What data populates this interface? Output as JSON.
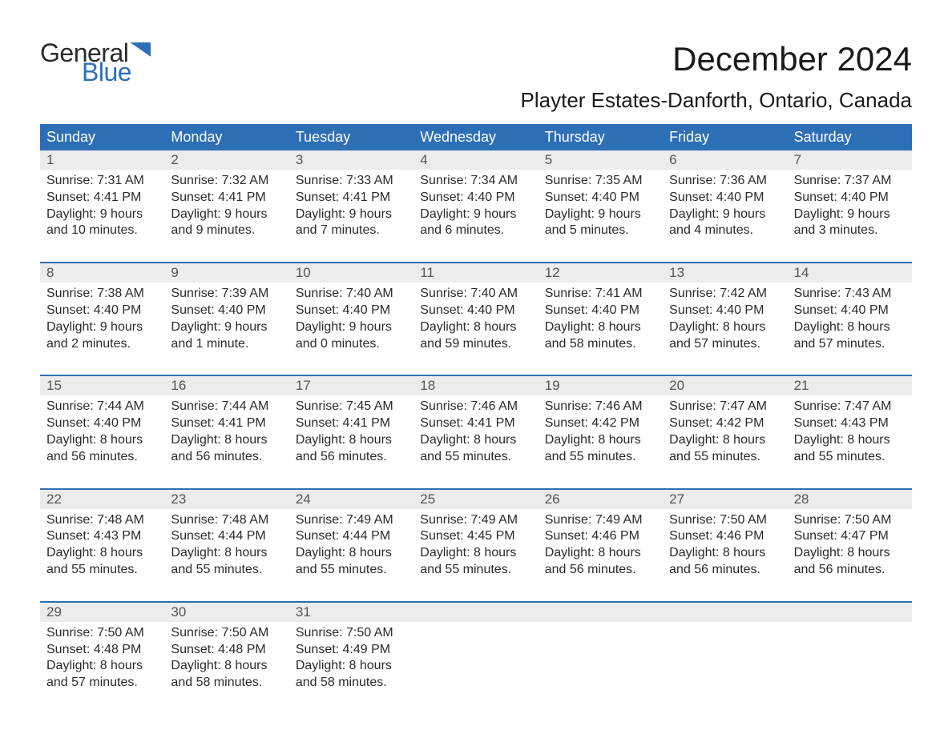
{
  "logo": {
    "text1": "General",
    "text2": "Blue"
  },
  "title": "December 2024",
  "subtitle": "Playter Estates-Danforth, Ontario, Canada",
  "colors": {
    "header_bg": "#2d6fb5",
    "header_text": "#ffffff",
    "daynum_bg": "#ececec",
    "daynum_text": "#555555",
    "body_text": "#2b2b2b",
    "week_border": "#2d6fb5",
    "page_bg": "#ffffff"
  },
  "typography": {
    "title_fontsize": 42,
    "subtitle_fontsize": 26,
    "weekday_fontsize": 18,
    "daynum_fontsize": 17,
    "cell_fontsize": 16,
    "logo_fontsize": 32
  },
  "weekdays": [
    "Sunday",
    "Monday",
    "Tuesday",
    "Wednesday",
    "Thursday",
    "Friday",
    "Saturday"
  ],
  "weeks": [
    [
      {
        "num": "1",
        "sunrise": "7:31 AM",
        "sunset": "4:41 PM",
        "daylight": "9 hours and 10 minutes."
      },
      {
        "num": "2",
        "sunrise": "7:32 AM",
        "sunset": "4:41 PM",
        "daylight": "9 hours and 9 minutes."
      },
      {
        "num": "3",
        "sunrise": "7:33 AM",
        "sunset": "4:41 PM",
        "daylight": "9 hours and 7 minutes."
      },
      {
        "num": "4",
        "sunrise": "7:34 AM",
        "sunset": "4:40 PM",
        "daylight": "9 hours and 6 minutes."
      },
      {
        "num": "5",
        "sunrise": "7:35 AM",
        "sunset": "4:40 PM",
        "daylight": "9 hours and 5 minutes."
      },
      {
        "num": "6",
        "sunrise": "7:36 AM",
        "sunset": "4:40 PM",
        "daylight": "9 hours and 4 minutes."
      },
      {
        "num": "7",
        "sunrise": "7:37 AM",
        "sunset": "4:40 PM",
        "daylight": "9 hours and 3 minutes."
      }
    ],
    [
      {
        "num": "8",
        "sunrise": "7:38 AM",
        "sunset": "4:40 PM",
        "daylight": "9 hours and 2 minutes."
      },
      {
        "num": "9",
        "sunrise": "7:39 AM",
        "sunset": "4:40 PM",
        "daylight": "9 hours and 1 minute."
      },
      {
        "num": "10",
        "sunrise": "7:40 AM",
        "sunset": "4:40 PM",
        "daylight": "9 hours and 0 minutes."
      },
      {
        "num": "11",
        "sunrise": "7:40 AM",
        "sunset": "4:40 PM",
        "daylight": "8 hours and 59 minutes."
      },
      {
        "num": "12",
        "sunrise": "7:41 AM",
        "sunset": "4:40 PM",
        "daylight": "8 hours and 58 minutes."
      },
      {
        "num": "13",
        "sunrise": "7:42 AM",
        "sunset": "4:40 PM",
        "daylight": "8 hours and 57 minutes."
      },
      {
        "num": "14",
        "sunrise": "7:43 AM",
        "sunset": "4:40 PM",
        "daylight": "8 hours and 57 minutes."
      }
    ],
    [
      {
        "num": "15",
        "sunrise": "7:44 AM",
        "sunset": "4:40 PM",
        "daylight": "8 hours and 56 minutes."
      },
      {
        "num": "16",
        "sunrise": "7:44 AM",
        "sunset": "4:41 PM",
        "daylight": "8 hours and 56 minutes."
      },
      {
        "num": "17",
        "sunrise": "7:45 AM",
        "sunset": "4:41 PM",
        "daylight": "8 hours and 56 minutes."
      },
      {
        "num": "18",
        "sunrise": "7:46 AM",
        "sunset": "4:41 PM",
        "daylight": "8 hours and 55 minutes."
      },
      {
        "num": "19",
        "sunrise": "7:46 AM",
        "sunset": "4:42 PM",
        "daylight": "8 hours and 55 minutes."
      },
      {
        "num": "20",
        "sunrise": "7:47 AM",
        "sunset": "4:42 PM",
        "daylight": "8 hours and 55 minutes."
      },
      {
        "num": "21",
        "sunrise": "7:47 AM",
        "sunset": "4:43 PM",
        "daylight": "8 hours and 55 minutes."
      }
    ],
    [
      {
        "num": "22",
        "sunrise": "7:48 AM",
        "sunset": "4:43 PM",
        "daylight": "8 hours and 55 minutes."
      },
      {
        "num": "23",
        "sunrise": "7:48 AM",
        "sunset": "4:44 PM",
        "daylight": "8 hours and 55 minutes."
      },
      {
        "num": "24",
        "sunrise": "7:49 AM",
        "sunset": "4:44 PM",
        "daylight": "8 hours and 55 minutes."
      },
      {
        "num": "25",
        "sunrise": "7:49 AM",
        "sunset": "4:45 PM",
        "daylight": "8 hours and 55 minutes."
      },
      {
        "num": "26",
        "sunrise": "7:49 AM",
        "sunset": "4:46 PM",
        "daylight": "8 hours and 56 minutes."
      },
      {
        "num": "27",
        "sunrise": "7:50 AM",
        "sunset": "4:46 PM",
        "daylight": "8 hours and 56 minutes."
      },
      {
        "num": "28",
        "sunrise": "7:50 AM",
        "sunset": "4:47 PM",
        "daylight": "8 hours and 56 minutes."
      }
    ],
    [
      {
        "num": "29",
        "sunrise": "7:50 AM",
        "sunset": "4:48 PM",
        "daylight": "8 hours and 57 minutes."
      },
      {
        "num": "30",
        "sunrise": "7:50 AM",
        "sunset": "4:48 PM",
        "daylight": "8 hours and 58 minutes."
      },
      {
        "num": "31",
        "sunrise": "7:50 AM",
        "sunset": "4:49 PM",
        "daylight": "8 hours and 58 minutes."
      },
      null,
      null,
      null,
      null
    ]
  ],
  "labels": {
    "sunrise": "Sunrise:",
    "sunset": "Sunset:",
    "daylight": "Daylight:"
  }
}
